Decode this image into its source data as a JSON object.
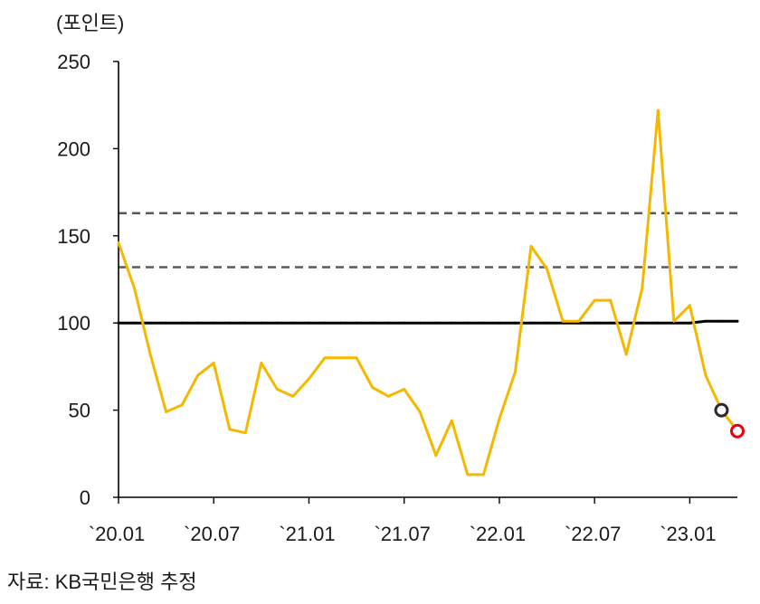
{
  "chart_data": {
    "type": "line",
    "ylabel": "(포인트)",
    "x": [
      "2020-01",
      "2020-02",
      "2020-03",
      "2020-04",
      "2020-05",
      "2020-06",
      "2020-07",
      "2020-08",
      "2020-09",
      "2020-10",
      "2020-11",
      "2020-12",
      "2021-01",
      "2021-02",
      "2021-03",
      "2021-04",
      "2021-05",
      "2021-06",
      "2021-07",
      "2021-08",
      "2021-09",
      "2021-10",
      "2021-11",
      "2021-12",
      "2022-01",
      "2022-02",
      "2022-03",
      "2022-04",
      "2022-05",
      "2022-06",
      "2022-07",
      "2022-08",
      "2022-09",
      "2022-10",
      "2022-11",
      "2022-12",
      "2023-01",
      "2023-02",
      "2023-03",
      "2023-04"
    ],
    "xlim": [
      "2020-01",
      "2023-04"
    ],
    "x_ticks": [
      "2020-01",
      "2020-07",
      "2021-01",
      "2021-07",
      "2022-01",
      "2022-07",
      "2023-01"
    ],
    "x_tick_labels": [
      "`20.01",
      "`20.07",
      "`21.01",
      "`21.07",
      "`22.01",
      "`22.07",
      "`23.01"
    ],
    "ylim": [
      0,
      250
    ],
    "y_ticks": [
      0,
      50,
      100,
      150,
      200,
      250
    ],
    "series": [
      {
        "color": "#000000",
        "values": [
          100,
          100,
          100,
          100,
          100,
          100,
          100,
          100,
          100,
          100,
          100,
          100,
          100,
          100,
          100,
          100,
          100,
          100,
          100,
          100,
          100,
          100,
          100,
          100,
          100,
          100,
          100,
          100,
          100,
          100,
          100,
          100,
          100,
          100,
          100,
          100,
          100,
          101,
          101,
          101
        ]
      },
      {
        "color": "#f5b800",
        "values": [
          146,
          120,
          82,
          49,
          53,
          70,
          77,
          39,
          37,
          77,
          62,
          58,
          68,
          80,
          80,
          80,
          63,
          58,
          62,
          49,
          24,
          44,
          13,
          13,
          45,
          72,
          144,
          131,
          101,
          101,
          113,
          113,
          82,
          120,
          222,
          101,
          110,
          70,
          50,
          38
        ]
      }
    ],
    "reference_lines": [
      {
        "y": 163,
        "style": "dashed",
        "color": "#595959"
      },
      {
        "y": 132,
        "style": "dashed",
        "color": "#595959"
      }
    ],
    "markers": [
      {
        "x": "2023-03",
        "y": 50,
        "color": "#2b2b2b"
      },
      {
        "x": "2023-04",
        "y": 38,
        "color": "#e60012"
      }
    ],
    "grid": false,
    "legend": "none"
  },
  "source": "자료: KB국민은행 추정"
}
